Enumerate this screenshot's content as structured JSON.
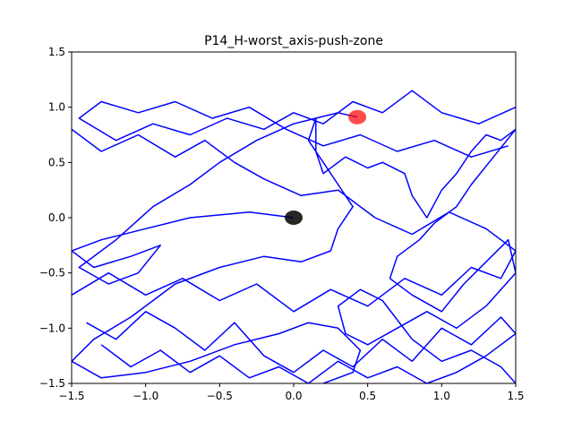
{
  "chart_data": {
    "type": "line",
    "title": "P14_H-worst_axis-push-zone",
    "xlabel": "",
    "ylabel": "",
    "xlim": [
      -1.5,
      1.5
    ],
    "ylim": [
      -1.5,
      1.5
    ],
    "x_ticks": [
      -1.5,
      -1.0,
      -0.5,
      0.0,
      0.5,
      1.0,
      1.5
    ],
    "x_tick_labels": [
      "−1.5",
      "−1.0",
      "−0.5",
      "0.0",
      "0.5",
      "1.0",
      "1.5"
    ],
    "y_ticks": [
      -1.5,
      -1.0,
      -0.5,
      0.0,
      0.5,
      1.0,
      1.5
    ],
    "y_tick_labels": [
      "−1.5",
      "−1.0",
      "−0.5",
      "0.0",
      "0.5",
      "1.0",
      "1.5"
    ],
    "grid": false,
    "legend": "none",
    "colors": {
      "path": "#0000ff",
      "goal": "#ff0000",
      "start": "#000000"
    },
    "markers": [
      {
        "name": "goal",
        "x": 0.43,
        "y": 0.91,
        "color": "#ff0000"
      },
      {
        "name": "start",
        "x": 0.0,
        "y": 0.0,
        "color": "#000000"
      }
    ],
    "series": [
      {
        "x": [
          0.0,
          -0.3,
          -0.7,
          -1.0,
          -1.3,
          -1.5,
          -1.35,
          -1.1,
          -0.9,
          -1.05,
          -1.25,
          -1.45,
          -1.2,
          -0.95,
          -0.7,
          -0.5,
          -0.25,
          0.0,
          0.15,
          0.1,
          0.2,
          0.3,
          0.4,
          0.3,
          0.25,
          0.05,
          -0.2,
          -0.5,
          -0.8,
          -1.1,
          -1.35,
          -1.5,
          -1.3,
          -1.0,
          -0.7,
          -0.4,
          -0.1,
          0.1,
          0.3,
          0.45,
          0.4,
          0.2
        ],
        "y": [
          0.0,
          0.05,
          0.0,
          -0.1,
          -0.2,
          -0.3,
          -0.45,
          -0.35,
          -0.25,
          -0.5,
          -0.6,
          -0.45,
          -0.2,
          0.1,
          0.3,
          0.5,
          0.7,
          0.85,
          0.9,
          0.7,
          0.5,
          0.3,
          0.1,
          -0.1,
          -0.3,
          -0.4,
          -0.35,
          -0.45,
          -0.6,
          -0.9,
          -1.1,
          -1.3,
          -1.45,
          -1.4,
          -1.3,
          -1.15,
          -1.05,
          -0.95,
          -1.0,
          -1.2,
          -1.4,
          -1.5
        ]
      },
      {
        "x": [
          0.43,
          0.3,
          0.15,
          0.15,
          0.2,
          0.35,
          0.5,
          0.6,
          0.75,
          0.8,
          0.9,
          1.0,
          1.1,
          1.2,
          1.3,
          1.4,
          1.5,
          1.35,
          1.2,
          1.1,
          0.95,
          0.85,
          0.7,
          0.65,
          0.8,
          1.0,
          1.15,
          1.3,
          1.45,
          1.5,
          1.3,
          1.1,
          0.9,
          0.7,
          0.5,
          0.35,
          0.3,
          0.45,
          0.6,
          0.8,
          1.0,
          1.2,
          1.4,
          1.5
        ],
        "y": [
          0.91,
          0.95,
          0.9,
          0.6,
          0.4,
          0.55,
          0.45,
          0.5,
          0.4,
          0.2,
          0.0,
          0.25,
          0.4,
          0.6,
          0.75,
          0.7,
          0.8,
          0.55,
          0.3,
          0.1,
          -0.05,
          -0.2,
          -0.35,
          -0.55,
          -0.7,
          -0.85,
          -0.6,
          -0.4,
          -0.2,
          -0.5,
          -0.8,
          -1.0,
          -0.85,
          -1.0,
          -1.15,
          -1.05,
          -0.8,
          -0.65,
          -0.75,
          -1.1,
          -1.3,
          -1.2,
          -1.35,
          -1.5
        ]
      },
      {
        "x": [
          -1.5,
          -1.3,
          -1.05,
          -0.8,
          -0.6,
          -0.4,
          -0.2,
          0.05,
          0.3,
          0.55,
          0.8,
          1.05,
          1.3,
          1.5,
          1.4,
          1.2,
          1.0,
          0.75,
          0.5,
          0.25,
          0.0,
          -0.25,
          -0.5,
          -0.75,
          -1.0,
          -1.25,
          -1.5
        ],
        "y": [
          0.8,
          0.6,
          0.75,
          0.55,
          0.7,
          0.5,
          0.35,
          0.2,
          0.25,
          0.0,
          -0.15,
          0.05,
          -0.1,
          -0.3,
          -0.55,
          -0.45,
          -0.7,
          -0.55,
          -0.8,
          -0.65,
          -0.85,
          -0.6,
          -0.75,
          -0.55,
          -0.7,
          -0.5,
          -0.7
        ]
      },
      {
        "x": [
          1.5,
          1.25,
          1.0,
          0.8,
          0.6,
          0.4,
          0.2,
          0.0,
          -0.2,
          -0.45,
          -0.7,
          -0.95,
          -1.2,
          -1.45,
          -1.3,
          -1.05,
          -0.8,
          -0.55,
          -0.3,
          -0.05,
          0.2,
          0.45,
          0.7,
          0.95,
          1.2,
          1.45
        ],
        "y": [
          1.0,
          0.85,
          0.95,
          1.15,
          0.95,
          1.05,
          0.85,
          0.95,
          0.8,
          0.9,
          0.75,
          0.85,
          0.7,
          0.9,
          1.05,
          0.95,
          1.05,
          0.9,
          1.0,
          0.8,
          0.65,
          0.75,
          0.6,
          0.7,
          0.55,
          0.65
        ]
      },
      {
        "x": [
          -1.4,
          -1.2,
          -1.0,
          -0.8,
          -0.6,
          -0.4,
          -0.2,
          0.0,
          0.2,
          0.4,
          0.6,
          0.8,
          1.0,
          1.2,
          1.4,
          1.5,
          1.3,
          1.1,
          0.9,
          0.7,
          0.5,
          0.3,
          0.1,
          -0.1,
          -0.3,
          -0.5,
          -0.7,
          -0.9,
          -1.1,
          -1.3
        ],
        "y": [
          -0.95,
          -1.1,
          -0.85,
          -1.0,
          -1.2,
          -0.95,
          -1.25,
          -1.4,
          -1.2,
          -1.35,
          -1.1,
          -1.3,
          -1.0,
          -1.15,
          -0.9,
          -1.05,
          -1.25,
          -1.4,
          -1.5,
          -1.35,
          -1.45,
          -1.3,
          -1.5,
          -1.35,
          -1.45,
          -1.25,
          -1.4,
          -1.2,
          -1.35,
          -1.15
        ]
      }
    ]
  }
}
